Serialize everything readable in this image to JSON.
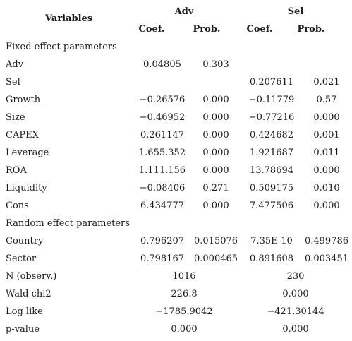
{
  "header": {
    "variables": "Variables",
    "groups": [
      "Adv",
      "Sel"
    ],
    "subcols": [
      "Coef.",
      "Prob.",
      "Coef.",
      "Prob."
    ]
  },
  "rows": [
    {
      "type": "section",
      "label": "Fixed effect parameters"
    },
    {
      "type": "data",
      "label": "Adv",
      "cells": [
        "0.04805",
        "0.303",
        "",
        ""
      ]
    },
    {
      "type": "data",
      "label": "Sel",
      "cells": [
        "",
        "",
        "0.207611",
        "0.021"
      ]
    },
    {
      "type": "data",
      "label": "Growth",
      "cells": [
        "−0.26576",
        "0.000",
        "−0.11779",
        "0.57"
      ]
    },
    {
      "type": "data",
      "label": "Size",
      "cells": [
        "−0.46952",
        "0.000",
        "−0.77216",
        "0.000"
      ]
    },
    {
      "type": "data",
      "label": "CAPEX",
      "cells": [
        "0.261147",
        "0.000",
        "0.424682",
        "0.001"
      ]
    },
    {
      "type": "data",
      "label": "Leverage",
      "cells": [
        "1.655.352",
        "0.000",
        "1.921687",
        "0.011"
      ]
    },
    {
      "type": "data",
      "label": "ROA",
      "cells": [
        "1.111.156",
        "0.000",
        "13.78694",
        "0.000"
      ]
    },
    {
      "type": "data",
      "label": "Liquidity",
      "cells": [
        "−0.08406",
        "0.271",
        "0.509175",
        "0.010"
      ]
    },
    {
      "type": "data",
      "label": "Cons",
      "cells": [
        "6.434777",
        "0.000",
        "7.477506",
        "0.000"
      ]
    },
    {
      "type": "section",
      "label": "Random effect parameters"
    },
    {
      "type": "data",
      "label": "Country",
      "cells": [
        "0.796207",
        "0.015076",
        "7.35E-10",
        "0.499786"
      ]
    },
    {
      "type": "data",
      "label": "Sector",
      "cells": [
        "0.798167",
        "0.000465",
        "0.891608",
        "0.003451"
      ]
    },
    {
      "type": "span",
      "label": "N (observ.)",
      "cells": [
        "1016",
        "230"
      ]
    },
    {
      "type": "span",
      "label": "Wald chi2",
      "cells": [
        "226.8",
        "0.000"
      ]
    },
    {
      "type": "span",
      "label": "Log like",
      "cells": [
        "−1785.9042",
        "−421.30144"
      ]
    },
    {
      "type": "span",
      "label": "p-value",
      "cells": [
        "0.000",
        "0.000"
      ]
    }
  ]
}
